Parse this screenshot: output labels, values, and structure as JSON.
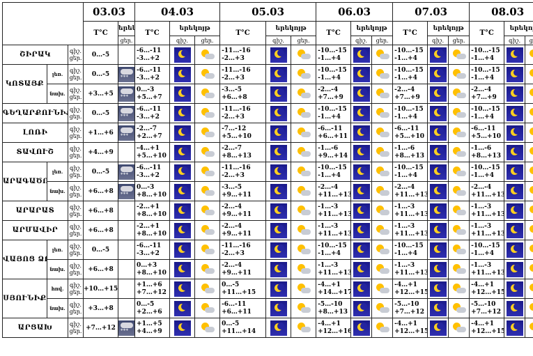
{
  "dates": [
    "03.03",
    "04.03",
    "05.03",
    "06.03",
    "07.03",
    "08.03"
  ],
  "labels": {
    "temp": "T°C",
    "day_short": "ցեր.",
    "day_long": "ցերեկը",
    "night_long": "երեկոյթ",
    "night_abbr": "գիշ.",
    "day_abbr": "ցեր.",
    "night_full": "գիշ․",
    "day_full": "ցեր."
  },
  "header": {
    "night_day": "երեկոյթ",
    "night": "գիշ․",
    "day": "ցեր.",
    "temp": "T°C"
  },
  "rows": [
    {
      "region": "ՇԻՐԱԿ",
      "sub": "",
      "d0": [
        "0…-5"
      ],
      "temps": [
        [
          "-6…-11",
          "-3…+2"
        ],
        [
          "-11…-16",
          "-2…+3"
        ],
        [
          "-10…-15",
          "-1…+4"
        ],
        [
          "-10…-15",
          "-1…+4"
        ],
        [
          "-10…-15",
          "-1…+4"
        ]
      ],
      "icon0": "",
      "icons": [
        "moon",
        "moon",
        "moon",
        "moon",
        "moon"
      ]
    },
    {
      "region": "ԿՈՏԱՅՔ",
      "sub": "լեռ.",
      "d0": [
        "0…-5"
      ],
      "temps": [
        [
          "-6…-11",
          "-3…+2"
        ],
        [
          "-11…-16",
          "-2…+3"
        ],
        [
          "-10…-15",
          "-1…+4"
        ],
        [
          "-10…-15",
          "-1…+4"
        ],
        [
          "-10…-15",
          "-1…+4"
        ]
      ],
      "icon0": "snow",
      "icons": [
        "moon",
        "moon",
        "moon",
        "moon",
        "moon"
      ]
    },
    {
      "region": "",
      "sub": "նախ.",
      "d0": [
        "+3…+5"
      ],
      "temps": [
        [
          "0…-3",
          "+5…+7"
        ],
        [
          "-3…-5",
          "+6…+8"
        ],
        [
          "-2…-4",
          "+7…+9"
        ],
        [
          "-2…-4",
          "+7…+9"
        ],
        [
          "-2…-4",
          "+7…+9"
        ]
      ],
      "icon0": "snow",
      "icons": [
        "moon",
        "moon",
        "moon",
        "moon",
        "moon"
      ]
    },
    {
      "region": "ԳԵՂԱՐՔՈՒՆԻՔ",
      "sub": "",
      "d0": [
        "0…-5"
      ],
      "temps": [
        [
          "-6…-11",
          "-3…+2"
        ],
        [
          "-11…-16",
          "-2…+3"
        ],
        [
          "-10…-15",
          "-1…+4"
        ],
        [
          "-10…-15",
          "-1…+4"
        ],
        [
          "-10…-15",
          "-1…+4"
        ]
      ],
      "icon0": "snow",
      "icons": [
        "moon",
        "moon",
        "moon",
        "moon",
        "moon"
      ]
    },
    {
      "region": "ԼՈՌԻ",
      "sub": "",
      "d0": [
        "+1…+6"
      ],
      "temps": [
        [
          "-2…-7",
          "+2…+7"
        ],
        [
          "-7…-12",
          "+5…+10"
        ],
        [
          "-6…-11",
          "+6…+11"
        ],
        [
          "-6…-11",
          "+5…+10"
        ],
        [
          "-6…-11",
          "+5…+10"
        ]
      ],
      "icon0": "snow",
      "icons": [
        "moon",
        "moon",
        "moon",
        "moon",
        "moon"
      ]
    },
    {
      "region": "ՏԱՎՈՒՇ",
      "sub": "",
      "d0": [
        "+4…+9"
      ],
      "temps": [
        [
          "-4…+1",
          "+5…+10"
        ],
        [
          "-2…-7",
          "+8…+13"
        ],
        [
          "-1…-6",
          "+9…+14"
        ],
        [
          "-1…-6",
          "+8…+13"
        ],
        [
          "-1…-6",
          "+8…+13"
        ]
      ],
      "icon0": "",
      "icons": [
        "moon",
        "moon",
        "moon",
        "moon",
        "moon"
      ]
    },
    {
      "region": "ԱՐԱԳԱԾՈՏՆ",
      "sub": "լեռ.",
      "d0": [
        "0…-5"
      ],
      "temps": [
        [
          "-6…-11",
          "-3…+2"
        ],
        [
          "-11…-16",
          "-2…+3"
        ],
        [
          "-10…-15",
          "-1…+4"
        ],
        [
          "-10…-15",
          "-1…+4"
        ],
        [
          "-10…-15",
          "-1…+4"
        ]
      ],
      "icon0": "snow",
      "icons": [
        "moon",
        "moon",
        "moon",
        "moon",
        "moon"
      ]
    },
    {
      "region": "",
      "sub": "նախ.",
      "d0": [
        "+6…+8"
      ],
      "temps": [
        [
          "0…-3",
          "+8…+10"
        ],
        [
          "-3…-5",
          "+9…+11"
        ],
        [
          "-2…-4",
          "+11…+13"
        ],
        [
          "-2…-4",
          "+11…+13"
        ],
        [
          "-2…-4",
          "+11…+13"
        ]
      ],
      "icon0": "snow",
      "icons": [
        "moon",
        "moon",
        "moon",
        "moon",
        "moon"
      ]
    },
    {
      "region": "ԱՐԱՐԱՏ",
      "sub": "",
      "d0": [
        "+6…+8"
      ],
      "temps": [
        [
          "-2…+1",
          "+8…+10"
        ],
        [
          "-2…-4",
          "+9…+11"
        ],
        [
          "-1…-3",
          "+11…+13"
        ],
        [
          "-1…-3",
          "+11…+13"
        ],
        [
          "-1…-3",
          "+11…+13"
        ]
      ],
      "icon0": "",
      "icons": [
        "moon",
        "moon",
        "moon",
        "moon",
        "moon"
      ]
    },
    {
      "region": "ԱՐՄԱՎԻՐ",
      "sub": "",
      "d0": [
        "+6…+8"
      ],
      "temps": [
        [
          "-2…+1",
          "+8…+10"
        ],
        [
          "-2…-4",
          "+9…+11"
        ],
        [
          "-1…-3",
          "+11…+13"
        ],
        [
          "-1…-3",
          "+11…+13"
        ],
        [
          "-1…-3",
          "+11…+13"
        ]
      ],
      "icon0": "",
      "icons": [
        "moon",
        "moon",
        "moon",
        "moon",
        "moon"
      ]
    },
    {
      "region": "ՎԱՅՈՑ ՁՈՐ",
      "sub": "լեռ.",
      "d0": [
        "0…-5"
      ],
      "temps": [
        [
          "-6…-11",
          "-3…+2"
        ],
        [
          "-11…-16",
          "-2…+3"
        ],
        [
          "-10…-15",
          "-1…+4"
        ],
        [
          "-10…-15",
          "-1…+4"
        ],
        [
          "-10…-15",
          "-1…+4"
        ]
      ],
      "icon0": "",
      "icons": [
        "moon",
        "moon",
        "moon",
        "moon",
        "moon"
      ]
    },
    {
      "region": "",
      "sub": "նախ.",
      "d0": [
        "+6…+8"
      ],
      "temps": [
        [
          "0…+3",
          "+8…+10"
        ],
        [
          "-2…-4",
          "+9…+11"
        ],
        [
          "-1…-3",
          "+11…+13"
        ],
        [
          "-1…-3",
          "+11…+13"
        ],
        [
          "-1…-3",
          "+11…+13"
        ]
      ],
      "icon0": "",
      "icons": [
        "moon",
        "moon",
        "moon",
        "moon",
        "moon"
      ]
    },
    {
      "region": "ՍՅՈՒՆԻՔ",
      "sub": "հով.",
      "d0": [
        "+10…+15"
      ],
      "temps": [
        [
          "+1…+6",
          "+7…+12"
        ],
        [
          "0…-5",
          "+11…+15"
        ],
        [
          "-4…+1",
          "+14…+17"
        ],
        [
          "-4…+1",
          "+12…+15"
        ],
        [
          "-4…+1",
          "+12…+15"
        ]
      ],
      "icon0": "",
      "icons": [
        "moon",
        "moon",
        "moon",
        "moon",
        "moon"
      ]
    },
    {
      "region": "",
      "sub": "նախ.",
      "d0": [
        "+3…+8"
      ],
      "temps": [
        [
          "0…-5",
          "+2…+6"
        ],
        [
          "-6…-11",
          "+6…+11"
        ],
        [
          "-5…-10",
          "+8…+13"
        ],
        [
          "-5…-10",
          "+7…+12"
        ],
        [
          "-5…-10",
          "+7…+12"
        ]
      ],
      "icon0": "",
      "icons": [
        "moon",
        "moon",
        "moon",
        "moon",
        "moon"
      ]
    },
    {
      "region": "ԱՐՑԱԽ",
      "sub": "",
      "d0": [
        "+7…+12"
      ],
      "temps": [
        [
          "+1…+5",
          "+4…+9"
        ],
        [
          "0…-5",
          "+11…+14"
        ],
        [
          "-4…+1",
          "+12…+16"
        ],
        [
          "-4…+1",
          "+12…+15"
        ],
        [
          "-4…+1",
          "+12…+15"
        ]
      ],
      "icon0": "snow",
      "icons": [
        "moon",
        "moon",
        "moon",
        "moon",
        "moon"
      ]
    }
  ]
}
